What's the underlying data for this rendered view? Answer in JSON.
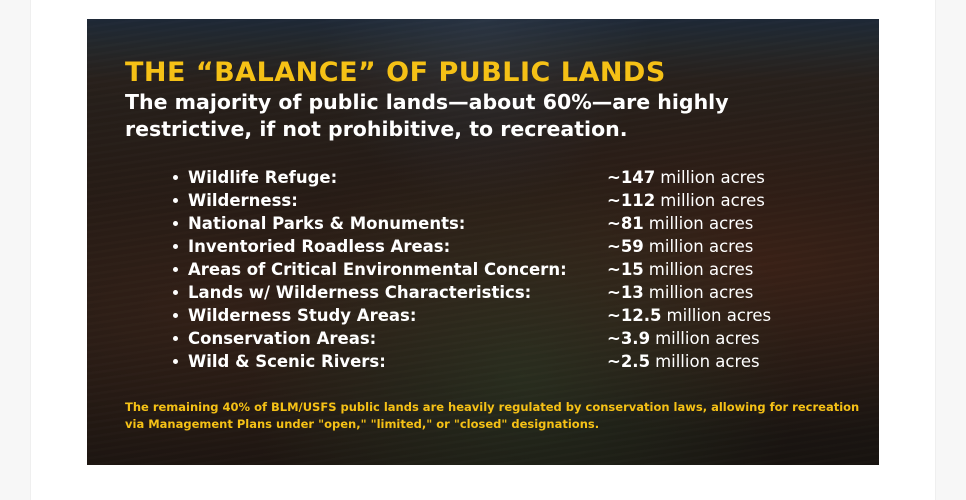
{
  "card": {
    "title": "THE “BALANCE” OF PUBLIC LANDS",
    "subtitle": "The majority of public lands—about 60%—are highly restrictive, if not prohibitive, to recreation.",
    "items": [
      {
        "label": "Wildlife Refuge:",
        "value": "~147",
        "unit": "million acres"
      },
      {
        "label": "Wilderness:",
        "value": "~112",
        "unit": "million acres"
      },
      {
        "label": "National Parks & Monuments:",
        "value": "~81",
        "unit": "million acres"
      },
      {
        "label": "Inventoried Roadless Areas:",
        "value": "~59",
        "unit": "million acres"
      },
      {
        "label": "Areas of Critical Environmental Concern:",
        "value": "~15",
        "unit": "million acres"
      },
      {
        "label": "Lands w/ Wilderness Characteristics:",
        "value": "~13",
        "unit": "million acres"
      },
      {
        "label": "Wilderness Study Areas:",
        "value": "~12.5",
        "unit": "million acres"
      },
      {
        "label": "Conservation Areas:",
        "value": "~3.9",
        "unit": "million acres"
      },
      {
        "label": "Wild & Scenic Rivers:",
        "value": "~2.5",
        "unit": "million acres"
      }
    ],
    "footnote": "The remaining 40% of BLM/USFS public lands are heavily regulated by conservation laws, allowing for recreation via Management Plans under \"open,\" \"limited,\" or \"closed\" designations."
  },
  "colors": {
    "accent": "#f5c116",
    "text": "#ffffff",
    "page_background": "#ffffff"
  }
}
